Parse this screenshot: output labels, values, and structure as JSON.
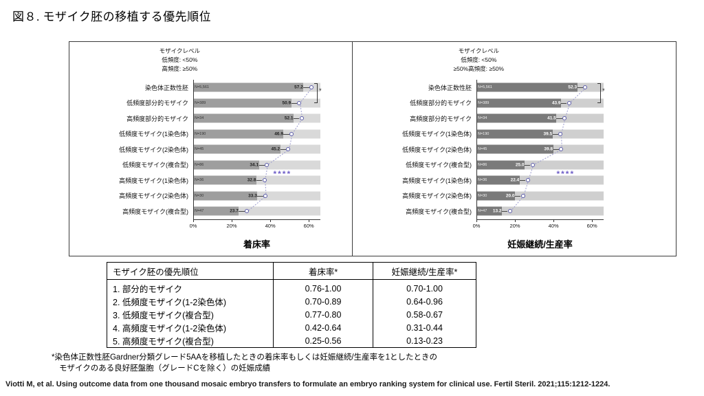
{
  "page": {
    "title": "図８. モザイク胚の移植する優先順位",
    "footnote_line1": "*染色体正数性胚Gardner分類グレード5AAを移植したときの着床率もしくは妊娠継続/生産率を1としたときの",
    "footnote_line2": "モザイクのある良好胚盤胞（グレードCを除く）の妊娠成績",
    "citation": "Viotti M, et al. Using outcome data from one thousand mosaic embryo transfers to formulate an embryo ranking system for clinical use. Fertil Steril. 2021;115:1212-1224."
  },
  "chart_data": [
    {
      "type": "bar",
      "orientation": "horizontal",
      "title": "着床率",
      "legend_title": "モザイクレベル",
      "legend_low": "低頻度: <50%",
      "legend_high": "高頻度: ≥50%",
      "categories": [
        "染色体正数性胚",
        "低頻度部分的モザイク",
        "高頻度部分的モザイク",
        "低頻度モザイク(1染色体)",
        "低頻度モザイク(2染色体)",
        "低頻度モザイク(複合型)",
        "高頻度モザイク(1染色体)",
        "高頻度モザイク(2染色体)",
        "高頻度モザイク(複合型)"
      ],
      "values": [
        57.2,
        50.9,
        52.1,
        46.9,
        45.2,
        34.1,
        32.8,
        33.3,
        23.7
      ],
      "n_labels": [
        "N=5,561",
        "N=389",
        "N=34",
        "N=190",
        "N=45",
        "N=86",
        "N=36",
        "N=30",
        "N=47"
      ],
      "x_ticks": [
        "0%",
        "20%",
        "40%",
        "60%"
      ],
      "x_tick_values": [
        0,
        20,
        40,
        60
      ],
      "xmax": 66,
      "significance": "****",
      "bracket_label": "*",
      "bar_color": "#9e9e9e",
      "track_color": "#d9d9d9",
      "value_color": "#1a1a1a",
      "n_color": "#333333"
    },
    {
      "type": "bar",
      "orientation": "horizontal",
      "title": "妊娠継続/生産率",
      "legend_title": "モザイクレベル",
      "legend_low": "低頻度: <50%",
      "legend_high": "≥50%高頻度: ≥50%",
      "categories": [
        "染色体正数性胚",
        "低頻度部分的モザイク",
        "高頻度部分的モザイク",
        "低頻度モザイク(1染色体)",
        "低頻度モザイク(2染色体)",
        "低頻度モザイク(複合型)",
        "高頻度モザイク(1染色体)",
        "高頻度モザイク(2染色体)",
        "高頻度モザイク(複合型)"
      ],
      "values": [
        52.3,
        43.9,
        41.5,
        39.5,
        39.8,
        25.0,
        22.4,
        20.0,
        13.2
      ],
      "n_labels": [
        "N=5,561",
        "N=389",
        "N=34",
        "N=190",
        "N=45",
        "N=86",
        "N=36",
        "N=30",
        "N=47"
      ],
      "x_ticks": [
        "0%",
        "20%",
        "40%",
        "60%"
      ],
      "x_tick_values": [
        0,
        20,
        40,
        60
      ],
      "xmax": 66,
      "significance": "****",
      "bracket_label": "*",
      "bar_color": "#7a7a7a",
      "track_color": "#cfcfcf",
      "value_color": "#ffffff",
      "n_color": "#f2f2f2"
    }
  ],
  "table": {
    "headers": [
      "モザイク胚の優先順位",
      "着床率*",
      "妊娠継続/生産率*"
    ],
    "rows": [
      [
        "1. 部分的モザイク",
        "0.76-1.00",
        "0.70-1.00"
      ],
      [
        "2. 低頻度モザイク(1-2染色体)",
        "0.70-0.89",
        "0.64-0.96"
      ],
      [
        "3. 低頻度モザイク(複合型)",
        "0.77-0.80",
        "0.58-0.67"
      ],
      [
        "4. 高頻度モザイク(1-2染色体)",
        "0.42-0.64",
        "0.31-0.44"
      ],
      [
        "5. 高頻度モザイク(複合型)",
        "0.25-0.56",
        "0.13-0.23"
      ]
    ]
  },
  "colors": {
    "significance": "#6f5fc8",
    "marker": "#5b5ba8",
    "trend": "#9a9ace"
  }
}
